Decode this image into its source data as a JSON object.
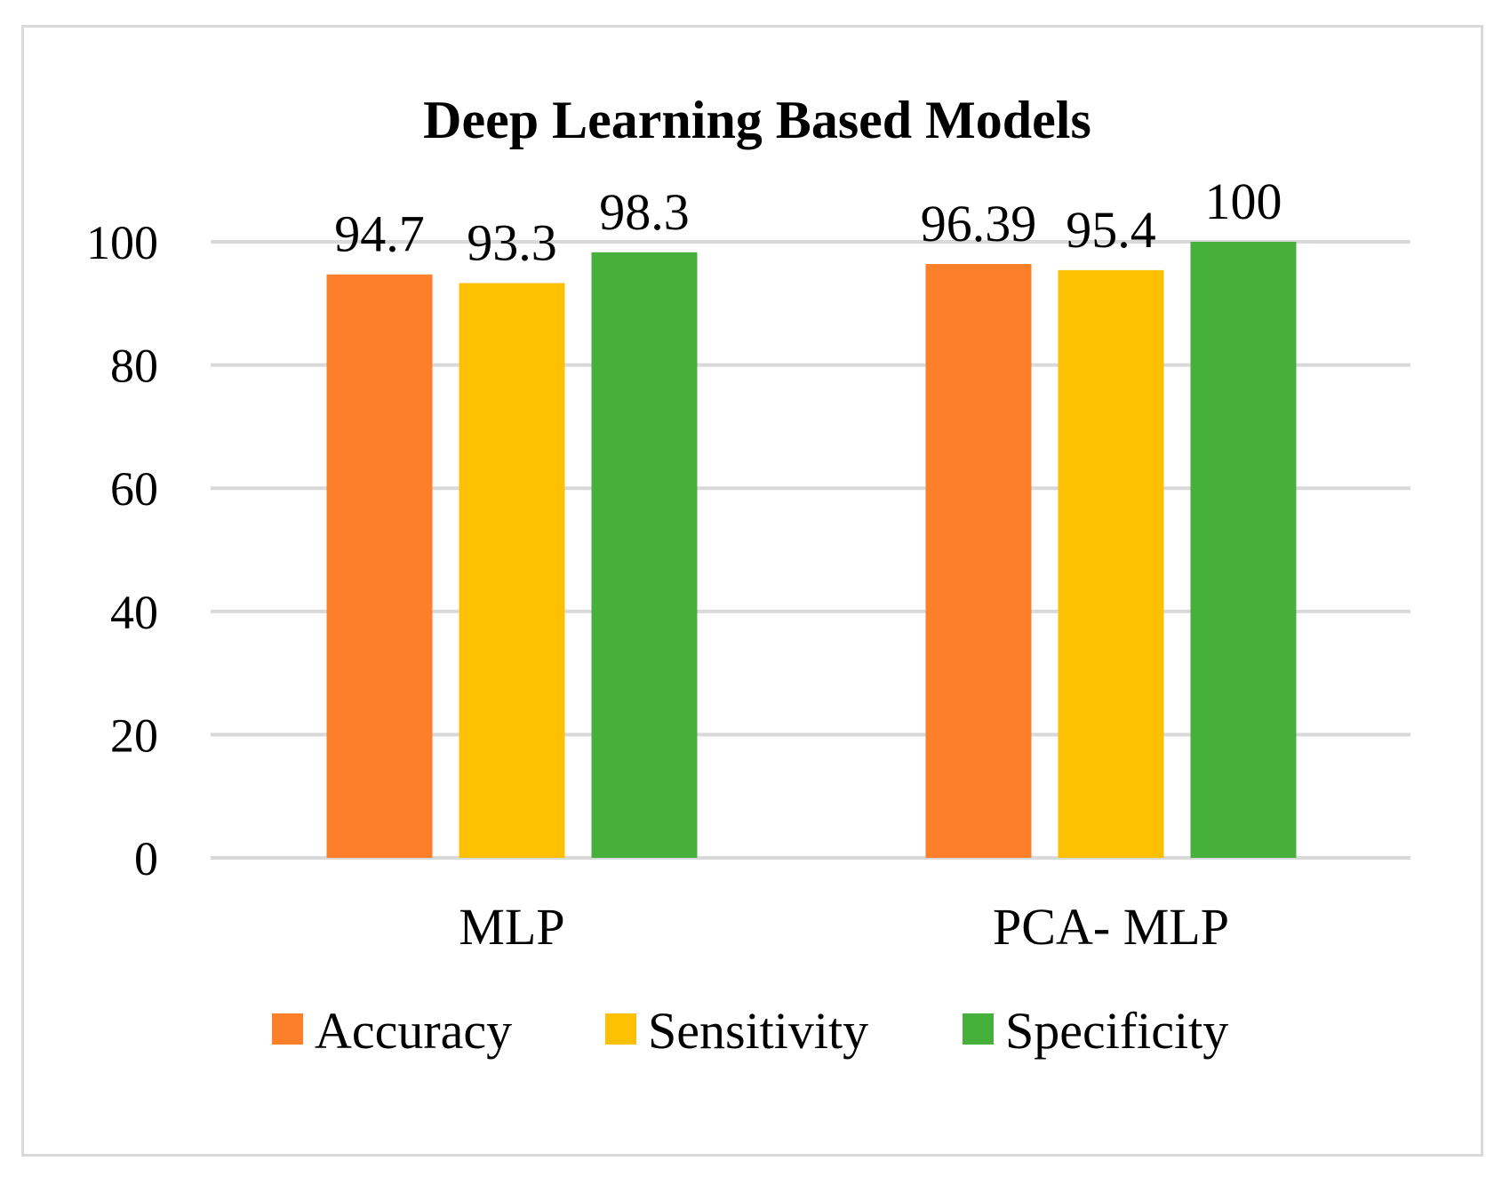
{
  "chart_data": {
    "type": "bar",
    "title": "Deep Learning Based Models",
    "categories": [
      "MLP",
      "PCA- MLP"
    ],
    "series": [
      {
        "name": "Accuracy",
        "color": "#fd7f29",
        "values": [
          94.7,
          96.39
        ],
        "labels": [
          "94.7",
          "96.39"
        ]
      },
      {
        "name": "Sensitivity",
        "color": "#fdc002",
        "values": [
          93.3,
          95.4
        ],
        "labels": [
          "93.3",
          "95.4"
        ]
      },
      {
        "name": "Specificity",
        "color": "#47b03d",
        "values": [
          98.3,
          100
        ],
        "labels": [
          "98.3",
          "100"
        ]
      }
    ],
    "yticks": [
      "0",
      "20",
      "40",
      "60",
      "80",
      "100"
    ],
    "ylim": [
      0,
      100
    ],
    "xlabel": "",
    "ylabel": "",
    "grid": true,
    "legend_position": "bottom"
  },
  "colors": {
    "gridline": "#d9d9d9",
    "frame": "#d9d9d9"
  }
}
